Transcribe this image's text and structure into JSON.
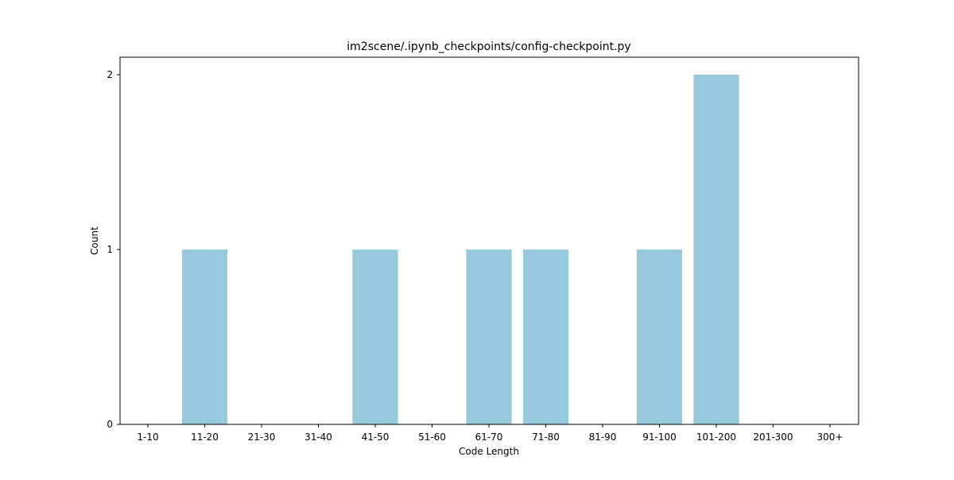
{
  "chart_data": {
    "type": "bar",
    "title": "im2scene/.ipynb_checkpoints/config-checkpoint.py",
    "xlabel": "Code Length",
    "ylabel": "Count",
    "categories": [
      "1-10",
      "11-20",
      "21-30",
      "31-40",
      "41-50",
      "51-60",
      "61-70",
      "71-80",
      "81-90",
      "91-100",
      "101-200",
      "201-300",
      "300+"
    ],
    "values": [
      0,
      1,
      0,
      0,
      1,
      0,
      1,
      1,
      0,
      1,
      2,
      0,
      0
    ],
    "yticks": [
      0,
      1,
      2
    ],
    "ylim": [
      0,
      2.1
    ],
    "grid": false,
    "bar_color": "#96c9dc"
  }
}
